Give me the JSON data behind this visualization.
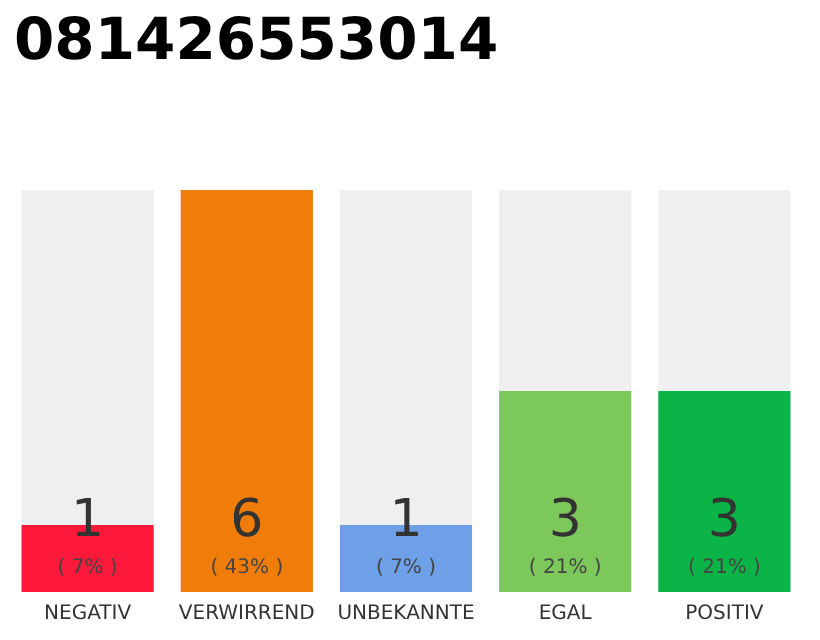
{
  "chart_data": {
    "type": "bar",
    "title": "081426553014",
    "categories": [
      "NEGATIV",
      "VERWIRREND",
      "UNBEKANNTE",
      "EGAL",
      "POSITIV"
    ],
    "values": [
      1,
      6,
      1,
      3,
      3
    ],
    "colors": [
      "#ff1a3c",
      "#f07d0a",
      "#6ea0e8",
      "#7dc85a",
      "#0ab446"
    ],
    "value_labels": [
      "1\n( 7% )",
      "6\n( 43% )",
      "1\n( 7% )",
      "3\n( 21% )",
      "3\n( 21% )"
    ],
    "grid": false
  }
}
